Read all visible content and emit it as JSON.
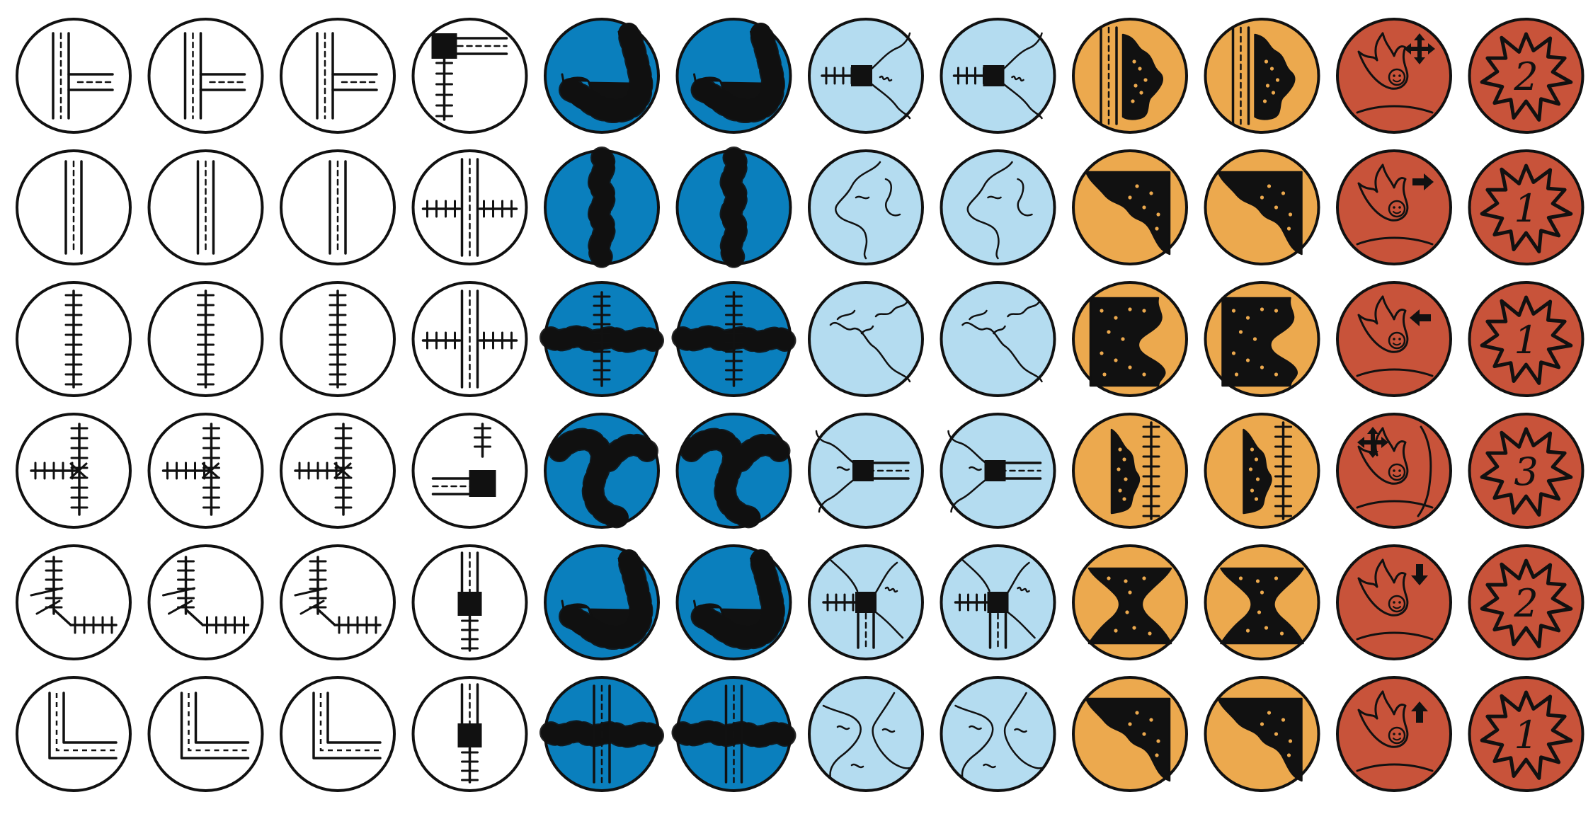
{
  "colors": {
    "outline": "#111111",
    "ink": "#111111",
    "road": "#ffffff",
    "river": "#0a7fbd",
    "stream": "#b4dcf0",
    "cliff": "#eca94e",
    "meteor": "#c8533a",
    "dots": "#eca94e"
  },
  "tiles": [
    {
      "color": "road",
      "icon": "road-tee"
    },
    {
      "color": "road",
      "icon": "road-tee"
    },
    {
      "color": "road",
      "icon": "road-tee"
    },
    {
      "color": "road",
      "icon": "road-bridge-junction"
    },
    {
      "color": "river",
      "icon": "river-hook"
    },
    {
      "color": "river",
      "icon": "river-hook"
    },
    {
      "color": "stream",
      "icon": "stream-rail-bridge"
    },
    {
      "color": "stream",
      "icon": "stream-rail-bridge"
    },
    {
      "color": "cliff",
      "icon": "cliff-road-left"
    },
    {
      "color": "cliff",
      "icon": "cliff-road-left"
    },
    {
      "color": "meteor",
      "icon": "meteor-move",
      "arrow": "4-way"
    },
    {
      "color": "meteor",
      "icon": "explosion",
      "number": "2"
    },
    {
      "color": "road",
      "icon": "road-straight"
    },
    {
      "color": "road",
      "icon": "road-straight"
    },
    {
      "color": "road",
      "icon": "road-straight"
    },
    {
      "color": "road",
      "icon": "road-rail-cross"
    },
    {
      "color": "river",
      "icon": "river-straight"
    },
    {
      "color": "river",
      "icon": "river-straight"
    },
    {
      "color": "stream",
      "icon": "stream-loop"
    },
    {
      "color": "stream",
      "icon": "stream-loop"
    },
    {
      "color": "cliff",
      "icon": "cliff-corner"
    },
    {
      "color": "cliff",
      "icon": "cliff-corner"
    },
    {
      "color": "meteor",
      "icon": "meteor-move",
      "arrow": "right"
    },
    {
      "color": "meteor",
      "icon": "explosion",
      "number": "1"
    },
    {
      "color": "road",
      "icon": "rail-straight"
    },
    {
      "color": "road",
      "icon": "rail-straight"
    },
    {
      "color": "road",
      "icon": "rail-straight"
    },
    {
      "color": "road",
      "icon": "road-rail-cross"
    },
    {
      "color": "river",
      "icon": "river-rail"
    },
    {
      "color": "river",
      "icon": "river-rail"
    },
    {
      "color": "stream",
      "icon": "stream-fork"
    },
    {
      "color": "stream",
      "icon": "stream-fork"
    },
    {
      "color": "cliff",
      "icon": "cliff-notch"
    },
    {
      "color": "cliff",
      "icon": "cliff-notch"
    },
    {
      "color": "meteor",
      "icon": "meteor-move",
      "arrow": "left"
    },
    {
      "color": "meteor",
      "icon": "explosion",
      "number": "1"
    },
    {
      "color": "road",
      "icon": "rail-tee"
    },
    {
      "color": "road",
      "icon": "rail-tee"
    },
    {
      "color": "road",
      "icon": "rail-tee"
    },
    {
      "color": "road",
      "icon": "road-rail-station"
    },
    {
      "color": "river",
      "icon": "river-s"
    },
    {
      "color": "river",
      "icon": "river-s"
    },
    {
      "color": "stream",
      "icon": "stream-road-bridge"
    },
    {
      "color": "stream",
      "icon": "stream-road-bridge"
    },
    {
      "color": "cliff",
      "icon": "cliff-rail-right"
    },
    {
      "color": "cliff",
      "icon": "cliff-rail-right"
    },
    {
      "color": "meteor",
      "icon": "meteor-move",
      "arrow": "4-way-wall"
    },
    {
      "color": "meteor",
      "icon": "explosion",
      "number": "3"
    },
    {
      "color": "road",
      "icon": "rail-corner"
    },
    {
      "color": "road",
      "icon": "rail-corner"
    },
    {
      "color": "road",
      "icon": "rail-corner"
    },
    {
      "color": "road",
      "icon": "road-rail-vertical-station"
    },
    {
      "color": "river",
      "icon": "river-hook"
    },
    {
      "color": "river",
      "icon": "river-hook"
    },
    {
      "color": "stream",
      "icon": "stream-junction"
    },
    {
      "color": "stream",
      "icon": "stream-junction"
    },
    {
      "color": "cliff",
      "icon": "cliff-pinch"
    },
    {
      "color": "cliff",
      "icon": "cliff-pinch"
    },
    {
      "color": "meteor",
      "icon": "meteor-move",
      "arrow": "down"
    },
    {
      "color": "meteor",
      "icon": "explosion",
      "number": "2"
    },
    {
      "color": "road",
      "icon": "road-corner"
    },
    {
      "color": "road",
      "icon": "road-corner"
    },
    {
      "color": "road",
      "icon": "road-corner"
    },
    {
      "color": "road",
      "icon": "road-rail-vertical-station"
    },
    {
      "color": "river",
      "icon": "river-road"
    },
    {
      "color": "river",
      "icon": "river-road"
    },
    {
      "color": "stream",
      "icon": "stream-cross"
    },
    {
      "color": "stream",
      "icon": "stream-cross"
    },
    {
      "color": "cliff",
      "icon": "cliff-corner"
    },
    {
      "color": "cliff",
      "icon": "cliff-corner"
    },
    {
      "color": "meteor",
      "icon": "meteor-move",
      "arrow": "up"
    },
    {
      "color": "meteor",
      "icon": "explosion",
      "number": "1"
    }
  ]
}
